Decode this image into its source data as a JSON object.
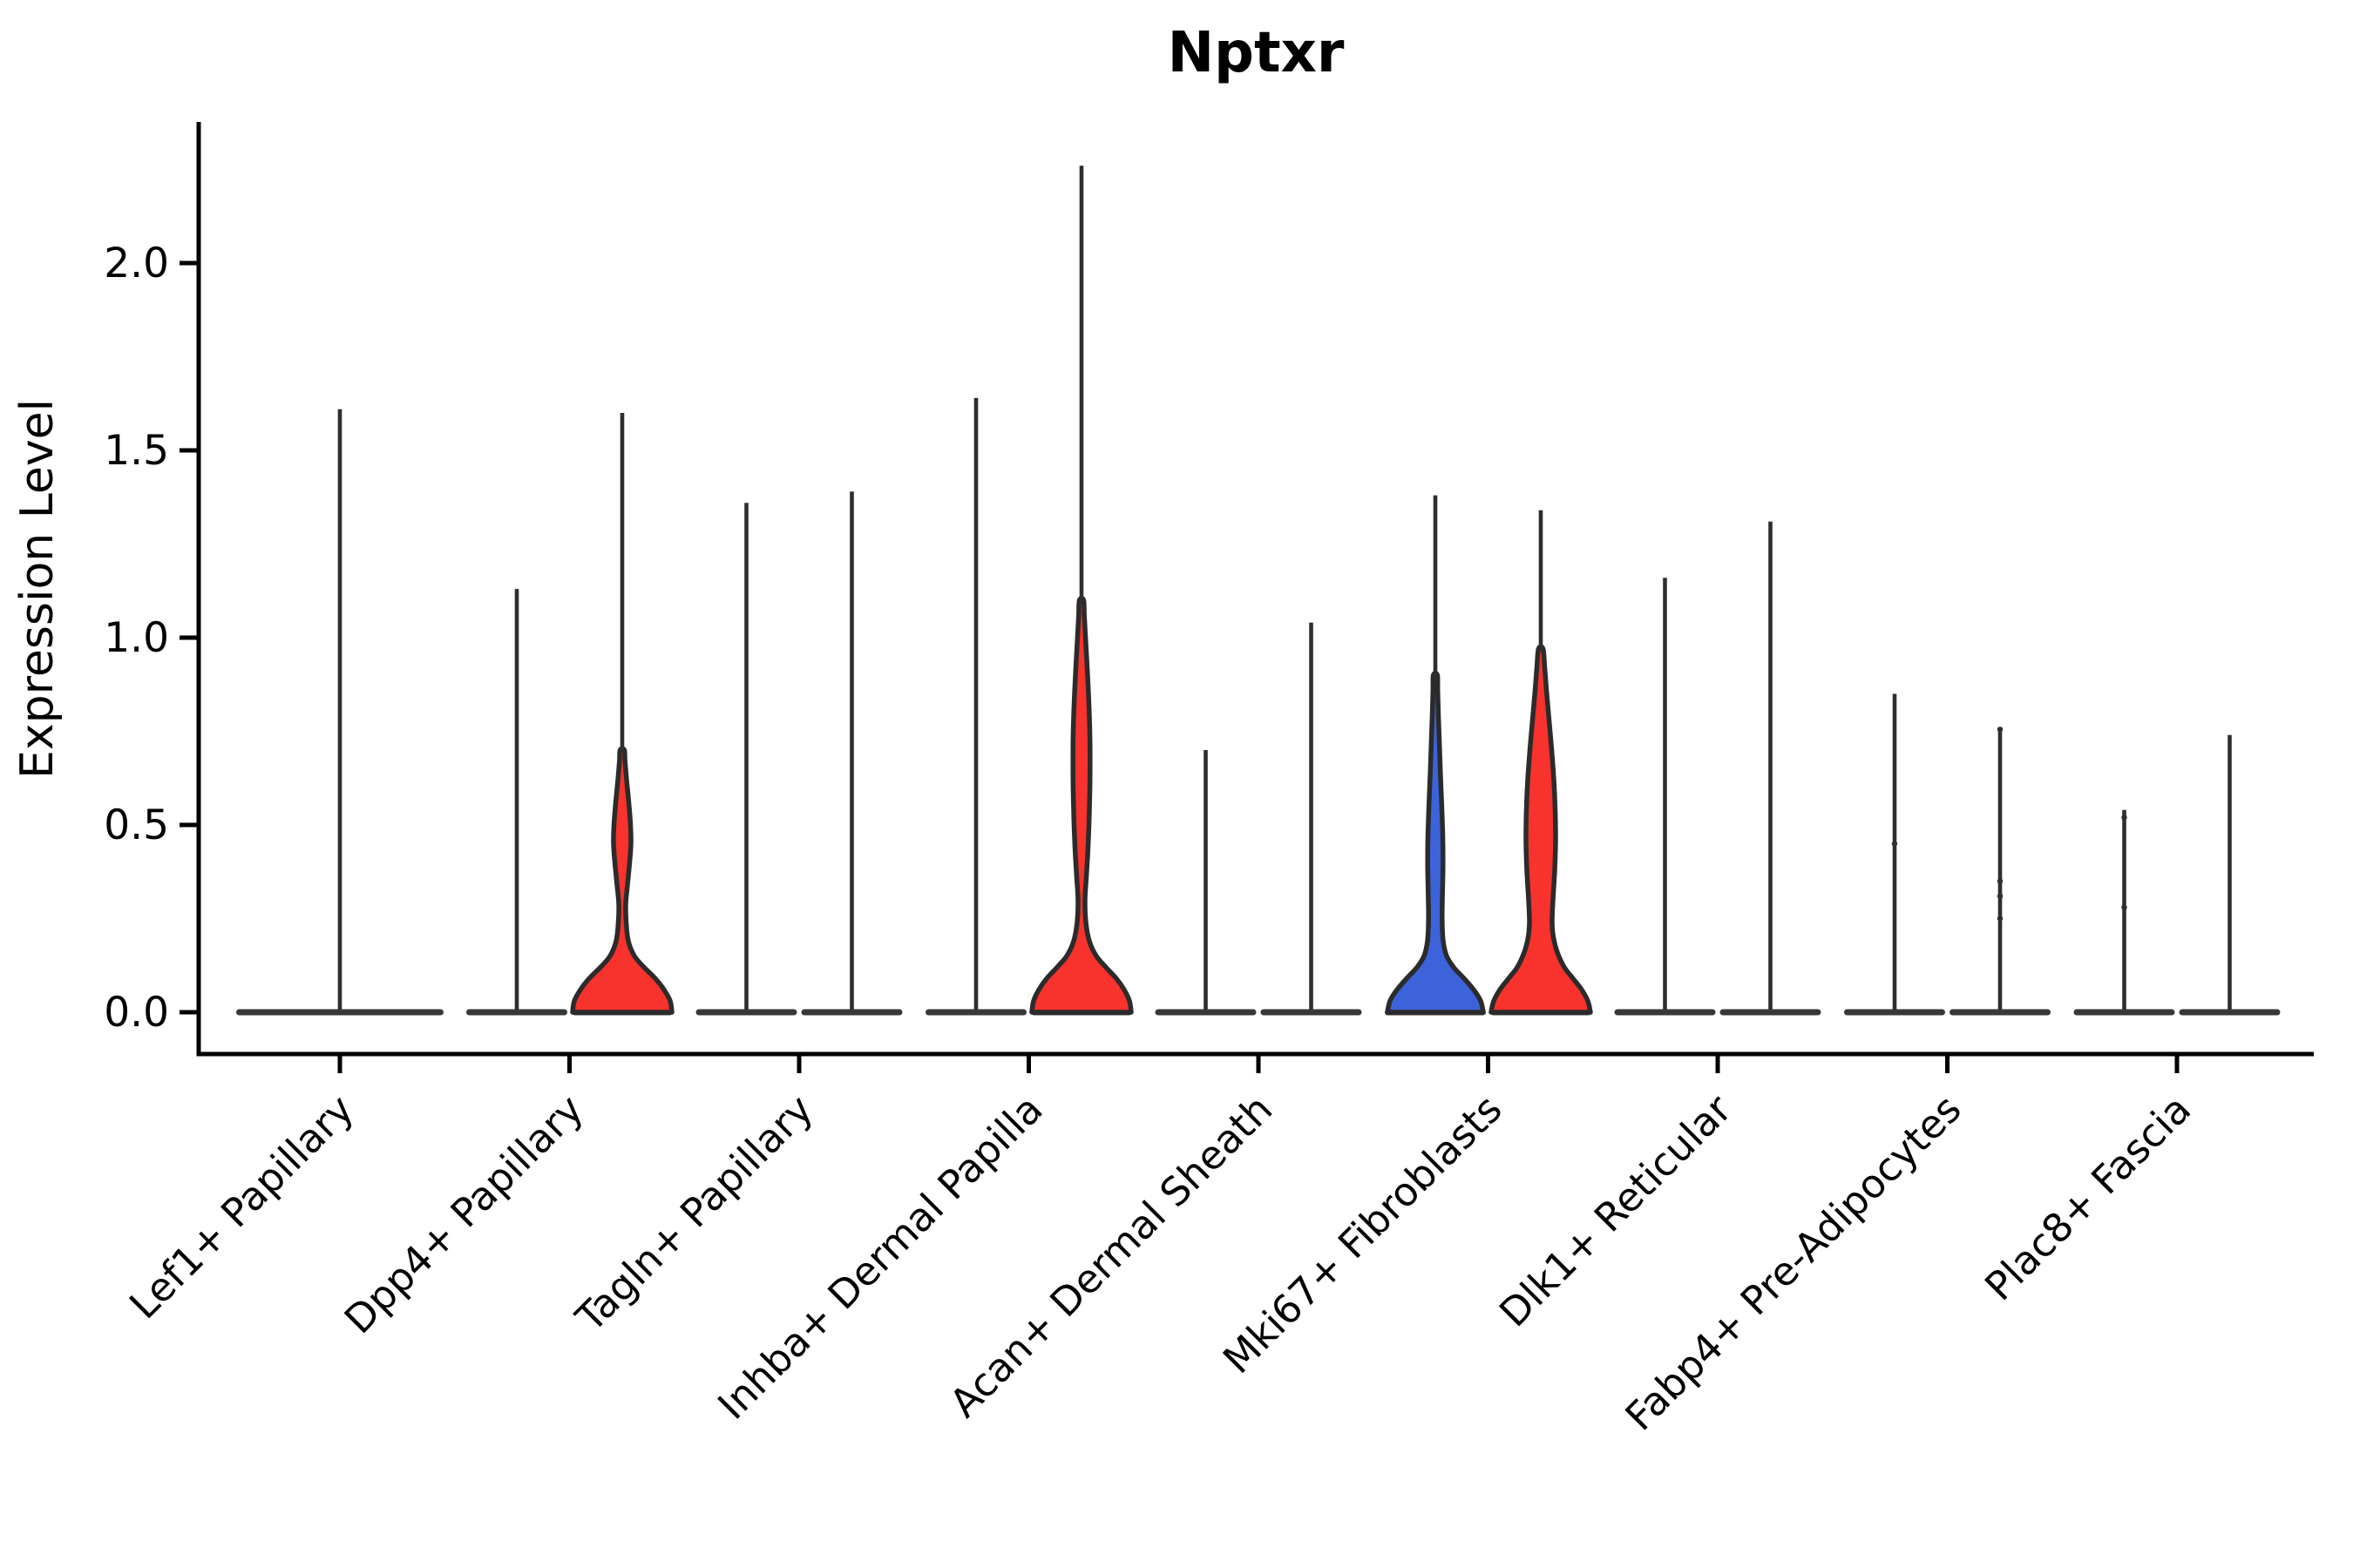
{
  "title": "Nptxr",
  "chart_data": {
    "type": "violin",
    "title": "Nptxr",
    "ylabel": "Expression Level",
    "xlabel": "",
    "grid": false,
    "legend": "none",
    "ylim": [
      -0.11,
      2.38
    ],
    "ytick_labels": [
      "0.0",
      "0.5",
      "1.0",
      "1.5",
      "2.0"
    ],
    "ytick_values": [
      0,
      0.5,
      1.0,
      1.5,
      2.0
    ],
    "colors": {
      "split_blue": "#3D63DB",
      "split_red": "#F8322C",
      "outline": "#2B2B2B",
      "spike": "#2E2E2E",
      "axis": "#000000"
    },
    "categories": [
      "Lef1+ Papillary",
      "Dpp4+ Papillary",
      "Tagln+ Papillary",
      "Inhba+ Dermal Papilla",
      "Acan+ Dermal Sheath",
      "Mki67+ Fibroblasts",
      "Dlk1+ Reticular",
      "Fabp4+ Pre-Adipocytes",
      "Plac8+ Fascia"
    ],
    "groups": [
      {
        "category": "Lef1+ Papillary",
        "violins": [
          {
            "slot": "center",
            "max_expression": 1.61,
            "fill": null,
            "shape": null,
            "points": []
          }
        ]
      },
      {
        "category": "Dpp4+ Papillary",
        "violins": [
          {
            "slot": "left",
            "max_expression": 1.13,
            "fill": null,
            "shape": null,
            "points": []
          },
          {
            "slot": "right",
            "max_expression": 1.6,
            "fill": "split_red",
            "points": [],
            "shape": [
              [
                0,
                57
              ],
              [
                0.03,
                55
              ],
              [
                0.06,
                48
              ],
              [
                0.09,
                38
              ],
              [
                0.12,
                25
              ],
              [
                0.15,
                14
              ],
              [
                0.19,
                7
              ],
              [
                0.24,
                4.5
              ],
              [
                0.29,
                4
              ],
              [
                0.34,
                6
              ],
              [
                0.4,
                8.5
              ],
              [
                0.45,
                10
              ],
              [
                0.5,
                9.5
              ],
              [
                0.56,
                7.5
              ],
              [
                0.62,
                5
              ],
              [
                0.67,
                3.2
              ],
              [
                0.7,
                2.4
              ]
            ]
          }
        ]
      },
      {
        "category": "Tagln+ Papillary",
        "violins": [
          {
            "slot": "left",
            "max_expression": 1.36,
            "fill": null,
            "shape": null,
            "points": []
          },
          {
            "slot": "right",
            "max_expression": 1.39,
            "fill": null,
            "shape": null,
            "points": []
          }
        ]
      },
      {
        "category": "Inhba+ Dermal Papilla",
        "violins": [
          {
            "slot": "left",
            "max_expression": 1.64,
            "fill": null,
            "shape": null,
            "points": []
          },
          {
            "slot": "right",
            "max_expression": 2.26,
            "fill": "split_red",
            "points": [],
            "shape": [
              [
                0,
                57
              ],
              [
                0.03,
                55
              ],
              [
                0.06,
                49
              ],
              [
                0.09,
                40
              ],
              [
                0.12,
                28
              ],
              [
                0.15,
                17
              ],
              [
                0.19,
                9
              ],
              [
                0.24,
                5
              ],
              [
                0.3,
                4
              ],
              [
                0.36,
                5.5
              ],
              [
                0.44,
                7.5
              ],
              [
                0.52,
                8.8
              ],
              [
                0.6,
                9.6
              ],
              [
                0.68,
                9.8
              ],
              [
                0.76,
                9.4
              ],
              [
                0.84,
                8.2
              ],
              [
                0.92,
                6.5
              ],
              [
                1.0,
                4.6
              ],
              [
                1.06,
                3.2
              ],
              [
                1.1,
                2.4
              ]
            ]
          }
        ]
      },
      {
        "category": "Acan+ Dermal Sheath",
        "violins": [
          {
            "slot": "left",
            "max_expression": 0.7,
            "fill": null,
            "shape": null,
            "points": []
          },
          {
            "slot": "right",
            "max_expression": 1.04,
            "fill": null,
            "shape": null,
            "points": []
          }
        ]
      },
      {
        "category": "Mki67+ Fibroblasts",
        "violins": [
          {
            "slot": "left",
            "max_expression": 1.38,
            "fill": "split_blue",
            "points": [],
            "shape": [
              [
                0,
                55
              ],
              [
                0.03,
                52
              ],
              [
                0.06,
                44
              ],
              [
                0.09,
                33
              ],
              [
                0.12,
                21
              ],
              [
                0.15,
                13
              ],
              [
                0.19,
                9
              ],
              [
                0.25,
                7.8
              ],
              [
                0.32,
                8.2
              ],
              [
                0.4,
                8.8
              ],
              [
                0.48,
                8.4
              ],
              [
                0.56,
                7.2
              ],
              [
                0.64,
                5.8
              ],
              [
                0.72,
                4.6
              ],
              [
                0.8,
                3.4
              ],
              [
                0.86,
                2.7
              ],
              [
                0.9,
                2.3
              ]
            ]
          },
          {
            "slot": "right",
            "max_expression": 1.34,
            "fill": "split_red",
            "points": [],
            "shape": [
              [
                0,
                57
              ],
              [
                0.03,
                54
              ],
              [
                0.06,
                47
              ],
              [
                0.09,
                37
              ],
              [
                0.12,
                27
              ],
              [
                0.16,
                19
              ],
              [
                0.2,
                14.5
              ],
              [
                0.24,
                13
              ],
              [
                0.3,
                14
              ],
              [
                0.38,
                16
              ],
              [
                0.46,
                17
              ],
              [
                0.54,
                16.5
              ],
              [
                0.62,
                15
              ],
              [
                0.7,
                12.5
              ],
              [
                0.78,
                9.5
              ],
              [
                0.86,
                6.5
              ],
              [
                0.92,
                4.5
              ],
              [
                0.97,
                2.6
              ]
            ]
          }
        ]
      },
      {
        "category": "Dlk1+ Reticular",
        "violins": [
          {
            "slot": "left",
            "max_expression": 1.16,
            "fill": null,
            "shape": null,
            "points": []
          },
          {
            "slot": "right",
            "max_expression": 1.31,
            "fill": null,
            "shape": null,
            "points": []
          }
        ]
      },
      {
        "category": "Fabp4+ Pre-Adipocytes",
        "violins": [
          {
            "slot": "left",
            "max_expression": 0.85,
            "fill": null,
            "shape": null,
            "points": [
              0.45
            ]
          },
          {
            "slot": "right",
            "max_expression": 0.76,
            "fill": null,
            "shape": null,
            "points": [
              0.755,
              0.35,
              0.31,
              0.25
            ]
          }
        ]
      },
      {
        "category": "Plac8+ Fascia",
        "violins": [
          {
            "slot": "left",
            "max_expression": 0.54,
            "fill": null,
            "shape": null,
            "points": [
              0.52,
              0.28
            ]
          },
          {
            "slot": "right",
            "max_expression": 0.74,
            "fill": null,
            "shape": null,
            "points": []
          }
        ]
      }
    ]
  }
}
